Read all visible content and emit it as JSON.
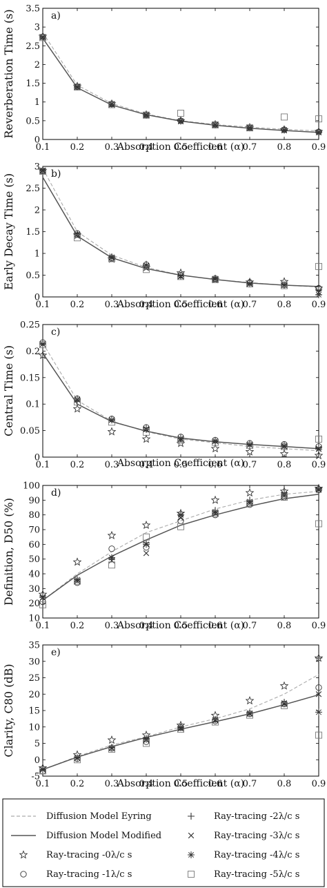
{
  "legend": {
    "entries": [
      {
        "key": "eyring",
        "label": "Diffusion Model Eyring",
        "marker": "dashed-line"
      },
      {
        "key": "modified",
        "label": "Diffusion Model Modified",
        "marker": "solid-line"
      },
      {
        "key": "rt0",
        "label": "Ray-tracing -0λ/c s",
        "marker": "star"
      },
      {
        "key": "rt1",
        "label": "Ray-tracing -1λ/c s",
        "marker": "circle"
      },
      {
        "key": "rt2",
        "label": "Ray-tracing -2λ/c s",
        "marker": "plus"
      },
      {
        "key": "rt3",
        "label": "Ray-tracing -3λ/c s",
        "marker": "cross"
      },
      {
        "key": "rt4",
        "label": "Ray-tracing -4λ/c s",
        "marker": "asterisk"
      },
      {
        "key": "rt5",
        "label": "Ray-tracing -5λ/c s",
        "marker": "square"
      }
    ]
  },
  "colors": {
    "eyring": "#aaaaaa",
    "modified": "#555555",
    "markers": "#333333",
    "square": "#777777"
  },
  "chart_data": [
    {
      "type": "line",
      "panel_label": "a)",
      "xlabel": "Absorption Coefficient (α)",
      "ylabel": "Reverberation Time (s)",
      "x": [
        0.1,
        0.2,
        0.3,
        0.4,
        0.5,
        0.6,
        0.7,
        0.8,
        0.9
      ],
      "xlim": [
        0.1,
        0.9
      ],
      "ylim": [
        0,
        3.5
      ],
      "xticks": [
        "0.1",
        "0.2",
        "0.3",
        "0.4",
        "0.5",
        "0.6",
        "0.7",
        "0.8",
        "0.9"
      ],
      "yticks": [
        "0",
        "0.5",
        "1",
        "1.5",
        "2",
        "2.5",
        "3",
        "3.5"
      ],
      "series": [
        {
          "key": "eyring",
          "values": [
            2.85,
            1.45,
            0.96,
            0.68,
            0.5,
            0.4,
            0.33,
            0.27,
            0.23
          ]
        },
        {
          "key": "modified",
          "values": [
            2.7,
            1.38,
            0.92,
            0.66,
            0.49,
            0.38,
            0.3,
            0.24,
            0.19
          ]
        },
        {
          "key": "rt0",
          "values": [
            2.75,
            1.42,
            0.95,
            0.66,
            0.5,
            0.4,
            0.32,
            0.26,
            0.21
          ]
        },
        {
          "key": "rt1",
          "values": [
            2.74,
            1.41,
            0.95,
            0.66,
            0.5,
            0.4,
            0.32,
            0.26,
            0.2
          ]
        },
        {
          "key": "rt2",
          "values": [
            2.74,
            1.41,
            0.94,
            0.65,
            0.5,
            0.39,
            0.32,
            0.26,
            0.2
          ]
        },
        {
          "key": "rt3",
          "values": [
            2.73,
            1.4,
            0.94,
            0.65,
            0.49,
            0.39,
            0.31,
            0.25,
            0.19
          ]
        },
        {
          "key": "rt4",
          "values": [
            2.73,
            1.4,
            0.94,
            0.65,
            0.49,
            0.39,
            0.31,
            0.25,
            0.19
          ]
        },
        {
          "key": "rt5",
          "values": [
            2.72,
            1.4,
            0.93,
            0.65,
            0.7,
            0.39,
            0.31,
            0.6,
            0.55
          ]
        }
      ]
    },
    {
      "type": "line",
      "panel_label": "b)",
      "xlabel": "Absorption Coefficient (α)",
      "ylabel": "Early Decay Time (s)",
      "x": [
        0.1,
        0.2,
        0.3,
        0.4,
        0.5,
        0.6,
        0.7,
        0.8,
        0.9
      ],
      "xlim": [
        0.1,
        0.9
      ],
      "ylim": [
        0,
        3
      ],
      "xticks": [
        "0.1",
        "0.2",
        "0.3",
        "0.4",
        "0.5",
        "0.6",
        "0.7",
        "0.8",
        "0.9"
      ],
      "yticks": [
        "0",
        "0.5",
        "1",
        "1.5",
        "2",
        "2.5",
        "3"
      ],
      "series": [
        {
          "key": "eyring",
          "values": [
            2.95,
            1.5,
            0.96,
            0.68,
            0.5,
            0.4,
            0.33,
            0.27,
            0.23
          ]
        },
        {
          "key": "modified",
          "values": [
            2.75,
            1.4,
            0.9,
            0.65,
            0.5,
            0.4,
            0.32,
            0.27,
            0.24
          ]
        },
        {
          "key": "rt0",
          "values": [
            2.9,
            1.42,
            0.87,
            0.68,
            0.55,
            0.4,
            0.34,
            0.35,
            0.2
          ]
        },
        {
          "key": "rt1",
          "values": [
            2.9,
            1.46,
            0.9,
            0.74,
            0.5,
            0.42,
            0.33,
            0.28,
            0.2
          ]
        },
        {
          "key": "rt2",
          "values": [
            2.92,
            1.45,
            0.92,
            0.75,
            0.49,
            0.43,
            0.32,
            0.27,
            0.16
          ]
        },
        {
          "key": "rt3",
          "values": [
            2.91,
            1.44,
            0.91,
            0.72,
            0.47,
            0.41,
            0.3,
            0.27,
            0.1
          ]
        },
        {
          "key": "rt4",
          "values": [
            2.9,
            1.44,
            0.9,
            0.72,
            0.48,
            0.42,
            0.3,
            0.27,
            0.05
          ]
        },
        {
          "key": "rt5",
          "values": [
            2.89,
            1.36,
            0.88,
            0.63,
            0.47,
            0.4,
            0.3,
            0.26,
            0.7
          ]
        }
      ]
    },
    {
      "type": "line",
      "panel_label": "c)",
      "xlabel": "Absorption Coefficient (α)",
      "ylabel": "Central Time (s)",
      "x": [
        0.1,
        0.2,
        0.3,
        0.4,
        0.5,
        0.6,
        0.7,
        0.8,
        0.9
      ],
      "xlim": [
        0.1,
        0.9
      ],
      "ylim": [
        0,
        0.25
      ],
      "xticks": [
        "0.1",
        "0.2",
        "0.3",
        "0.4",
        "0.5",
        "0.6",
        "0.7",
        "0.8",
        "0.9"
      ],
      "yticks": [
        "0",
        "0.05",
        "0.1",
        "0.15",
        "0.2",
        "0.25"
      ],
      "series": [
        {
          "key": "eyring",
          "values": [
            0.215,
            0.107,
            0.068,
            0.048,
            0.034,
            0.027,
            0.02,
            0.016,
            0.012
          ]
        },
        {
          "key": "modified",
          "values": [
            0.196,
            0.1,
            0.067,
            0.049,
            0.036,
            0.029,
            0.024,
            0.02,
            0.016
          ]
        },
        {
          "key": "rt0",
          "values": [
            0.192,
            0.091,
            0.048,
            0.034,
            0.026,
            0.016,
            0.01,
            0.006,
            0.003
          ]
        },
        {
          "key": "rt1",
          "values": [
            0.216,
            0.11,
            0.072,
            0.056,
            0.038,
            0.032,
            0.026,
            0.024,
            0.02
          ]
        },
        {
          "key": "rt2",
          "values": [
            0.214,
            0.11,
            0.071,
            0.055,
            0.036,
            0.031,
            0.025,
            0.022,
            0.018
          ]
        },
        {
          "key": "rt3",
          "values": [
            0.213,
            0.109,
            0.07,
            0.053,
            0.035,
            0.03,
            0.023,
            0.021,
            0.016
          ]
        },
        {
          "key": "rt4",
          "values": [
            0.213,
            0.108,
            0.07,
            0.052,
            0.034,
            0.03,
            0.023,
            0.02,
            0.015
          ]
        },
        {
          "key": "rt5",
          "values": [
            0.212,
            0.104,
            0.066,
            0.047,
            0.032,
            0.028,
            0.022,
            0.02,
            0.034
          ]
        }
      ]
    },
    {
      "type": "line",
      "panel_label": "d)",
      "xlabel": "Absorption Coefficient (α)",
      "ylabel": "Definition, D50 (%)",
      "x": [
        0.1,
        0.2,
        0.3,
        0.4,
        0.5,
        0.6,
        0.7,
        0.8,
        0.9
      ],
      "xlim": [
        0.1,
        0.9
      ],
      "ylim": [
        10,
        100
      ],
      "xticks": [
        "0.1",
        "0.2",
        "0.3",
        "0.4",
        "0.5",
        "0.6",
        "0.7",
        "0.8",
        "0.9"
      ],
      "yticks": [
        "10",
        "20",
        "30",
        "40",
        "50",
        "60",
        "70",
        "80",
        "90",
        "100"
      ],
      "series": [
        {
          "key": "eyring",
          "values": [
            22,
            40,
            55,
            68,
            76,
            84,
            90,
            94,
            96
          ]
        },
        {
          "key": "modified",
          "values": [
            22,
            39,
            52,
            63,
            73,
            80,
            86,
            91,
            94
          ]
        },
        {
          "key": "rt0",
          "values": [
            26,
            48,
            66,
            73,
            81,
            90,
            95,
            96,
            98
          ]
        },
        {
          "key": "rt1",
          "values": [
            21,
            34,
            57,
            58,
            76,
            80,
            87,
            92,
            97
          ]
        },
        {
          "key": "rt2",
          "values": [
            25,
            36,
            50,
            61,
            80,
            83,
            90,
            95,
            98
          ]
        },
        {
          "key": "rt3",
          "values": [
            24,
            35,
            49,
            54,
            78,
            81,
            88,
            93,
            97
          ]
        },
        {
          "key": "rt4",
          "values": [
            24,
            36,
            51,
            60,
            80,
            82,
            89,
            94,
            97
          ]
        },
        {
          "key": "rt5",
          "values": [
            19,
            35,
            46,
            65,
            72,
            81,
            88,
            92,
            74
          ]
        }
      ]
    },
    {
      "type": "line",
      "panel_label": "e)",
      "xlabel": "Absorption Coefficient (α)",
      "ylabel": "Clarity, C80 (dB)",
      "x": [
        0.1,
        0.2,
        0.3,
        0.4,
        0.5,
        0.6,
        0.7,
        0.8,
        0.9
      ],
      "xlim": [
        0.1,
        0.9
      ],
      "ylim": [
        -5,
        35
      ],
      "xticks": [
        "0.1",
        "0.2",
        "0.3",
        "0.4",
        "0.5",
        "0.6",
        "0.7",
        "0.8",
        "0.9"
      ],
      "yticks": [
        "-5",
        "0",
        "5",
        "10",
        "15",
        "20",
        "25",
        "30",
        "35"
      ],
      "series": [
        {
          "key": "eyring",
          "values": [
            -3,
            1,
            4.5,
            7,
            10,
            12.5,
            15.5,
            20,
            26
          ]
        },
        {
          "key": "modified",
          "values": [
            -3,
            0.8,
            4,
            6.8,
            9.3,
            11.6,
            14,
            16.8,
            19.8
          ]
        },
        {
          "key": "rt0",
          "values": [
            -2.5,
            1.5,
            6,
            7.5,
            10.5,
            13.5,
            18,
            22.5,
            31
          ]
        },
        {
          "key": "rt1",
          "values": [
            -3.5,
            0.3,
            3.5,
            5.5,
            9.8,
            11.8,
            14,
            17,
            22
          ]
        },
        {
          "key": "rt2",
          "values": [
            -3,
            0.5,
            3.8,
            6.5,
            10,
            12.3,
            14.3,
            17.5,
            31
          ]
        },
        {
          "key": "rt3",
          "values": [
            -3,
            0.5,
            3.5,
            6,
            9.5,
            12,
            14,
            17,
            20
          ]
        },
        {
          "key": "rt4",
          "values": [
            -3,
            0.6,
            3.6,
            6.2,
            9.8,
            12.2,
            14.2,
            17.3,
            14.5
          ]
        },
        {
          "key": "rt5",
          "values": [
            -3.4,
            0,
            3.2,
            5,
            9.3,
            11.5,
            13.6,
            16.5,
            7.5
          ]
        }
      ]
    }
  ]
}
